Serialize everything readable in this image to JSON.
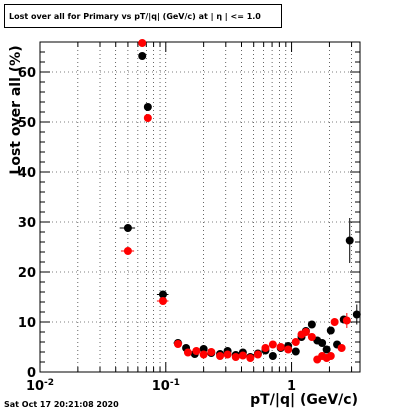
{
  "title": "Lost over all for Primary vs pT/|q| (GeV/c) at | η | <= 1.0",
  "footer": "Sat Oct 17 20:21:08 2020",
  "chart_data": {
    "type": "scatter",
    "title": "Lost over all for Primary vs pT/|q| (GeV/c) at | η | <= 1.0",
    "xlabel": "pT/|q| (GeV/c)",
    "ylabel": "Lost over all (%)",
    "xscale": "log",
    "xlim": [
      0.01,
      3.5
    ],
    "ylim": [
      0,
      66
    ],
    "grid": true,
    "x_tick_labels": [
      "10^-2",
      "10^-1",
      "1"
    ],
    "y_tick_labels": [
      "0",
      "10",
      "20",
      "30",
      "40",
      "50",
      "60"
    ],
    "series": [
      {
        "color": "#000000",
        "points": [
          {
            "x": 0.05,
            "y": 28.8,
            "xerr": 0.007
          },
          {
            "x": 0.065,
            "y": 63.2
          },
          {
            "x": 0.072,
            "y": 53.0
          },
          {
            "x": 0.095,
            "y": 15.5,
            "xerr": 0.01
          },
          {
            "x": 0.125,
            "y": 5.8,
            "xerr": 0.01
          },
          {
            "x": 0.145,
            "y": 4.8
          },
          {
            "x": 0.17,
            "y": 3.6
          },
          {
            "x": 0.2,
            "y": 4.6
          },
          {
            "x": 0.23,
            "y": 3.8
          },
          {
            "x": 0.27,
            "y": 3.6
          },
          {
            "x": 0.31,
            "y": 4.2
          },
          {
            "x": 0.36,
            "y": 3.4
          },
          {
            "x": 0.41,
            "y": 3.9
          },
          {
            "x": 0.47,
            "y": 3.0
          },
          {
            "x": 0.54,
            "y": 3.7
          },
          {
            "x": 0.62,
            "y": 4.3
          },
          {
            "x": 0.71,
            "y": 3.2
          },
          {
            "x": 0.82,
            "y": 4.8
          },
          {
            "x": 0.94,
            "y": 5.2
          },
          {
            "x": 1.08,
            "y": 4.1
          },
          {
            "x": 1.2,
            "y": 7.0
          },
          {
            "x": 1.3,
            "y": 8.2
          },
          {
            "x": 1.45,
            "y": 9.5
          },
          {
            "x": 1.6,
            "y": 6.3
          },
          {
            "x": 1.75,
            "y": 5.8
          },
          {
            "x": 1.9,
            "y": 4.5
          },
          {
            "x": 2.05,
            "y": 8.3
          },
          {
            "x": 2.3,
            "y": 5.5
          },
          {
            "x": 2.6,
            "y": 10.5
          },
          {
            "x": 2.9,
            "y": 26.3,
            "yerr": 4.5
          },
          {
            "x": 3.3,
            "y": 11.5,
            "yerr": 2.0
          }
        ]
      },
      {
        "color": "#ff0000",
        "points": [
          {
            "x": 0.05,
            "y": 24.2,
            "xerr": 0.006
          },
          {
            "x": 0.065,
            "y": 65.8
          },
          {
            "x": 0.072,
            "y": 50.8
          },
          {
            "x": 0.095,
            "y": 14.2,
            "xerr": 0.01
          },
          {
            "x": 0.125,
            "y": 5.6
          },
          {
            "x": 0.15,
            "y": 3.9
          },
          {
            "x": 0.175,
            "y": 4.2
          },
          {
            "x": 0.2,
            "y": 3.5
          },
          {
            "x": 0.23,
            "y": 4.0
          },
          {
            "x": 0.27,
            "y": 3.2
          },
          {
            "x": 0.31,
            "y": 3.5
          },
          {
            "x": 0.36,
            "y": 3.0
          },
          {
            "x": 0.41,
            "y": 3.3
          },
          {
            "x": 0.47,
            "y": 2.8
          },
          {
            "x": 0.54,
            "y": 3.5
          },
          {
            "x": 0.62,
            "y": 4.8
          },
          {
            "x": 0.71,
            "y": 5.5
          },
          {
            "x": 0.82,
            "y": 5.0
          },
          {
            "x": 0.94,
            "y": 4.5
          },
          {
            "x": 1.08,
            "y": 6.0
          },
          {
            "x": 1.2,
            "y": 7.5
          },
          {
            "x": 1.3,
            "y": 8.0
          },
          {
            "x": 1.45,
            "y": 7.0
          },
          {
            "x": 1.6,
            "y": 2.5
          },
          {
            "x": 1.75,
            "y": 3.2
          },
          {
            "x": 1.9,
            "y": 2.8
          },
          {
            "x": 2.05,
            "y": 3.2
          },
          {
            "x": 2.2,
            "y": 10.0
          },
          {
            "x": 2.5,
            "y": 4.8
          },
          {
            "x": 2.75,
            "y": 10.3,
            "yerr": 1.5
          }
        ]
      }
    ]
  }
}
